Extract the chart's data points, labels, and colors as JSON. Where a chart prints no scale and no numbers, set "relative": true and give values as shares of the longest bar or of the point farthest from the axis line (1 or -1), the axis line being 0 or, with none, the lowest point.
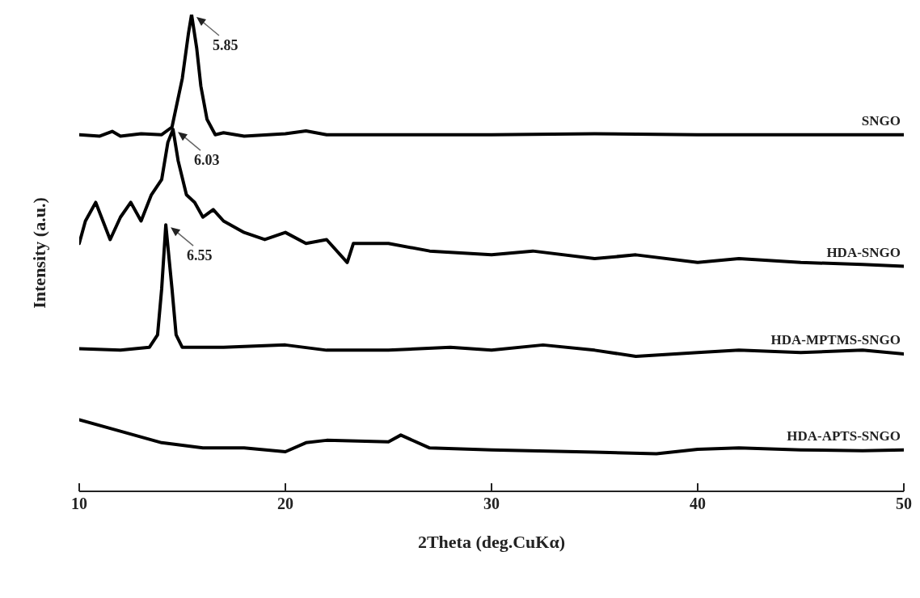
{
  "chart_data": {
    "type": "line",
    "xlabel": "2Theta (deg.CuKα)",
    "ylabel": "Intensity (a.u.)",
    "relative": true,
    "xlim": [
      10,
      50
    ],
    "xticks": [
      10,
      20,
      30,
      40,
      50
    ],
    "marker": "none",
    "line_style": "solid",
    "series": [
      {
        "name": "SNGO",
        "color": "#000000",
        "x": [
          10,
          11,
          11.6,
          12,
          13,
          14,
          14.5,
          15.0,
          15.3,
          15.45,
          15.7,
          15.9,
          16.2,
          16.6,
          17,
          18,
          20,
          21,
          22,
          24,
          30,
          35,
          40,
          45,
          50
        ],
        "values": [
          0.748,
          0.745,
          0.755,
          0.745,
          0.75,
          0.748,
          0.764,
          0.866,
          0.961,
          1.0,
          0.929,
          0.85,
          0.78,
          0.748,
          0.752,
          0.745,
          0.75,
          0.756,
          0.748,
          0.748,
          0.748,
          0.75,
          0.748,
          0.748,
          0.748
        ]
      },
      {
        "name": "HDA-SNGO",
        "color": "#000000",
        "x": [
          10,
          10.3,
          10.8,
          11.5,
          12,
          12.5,
          13,
          13.5,
          14,
          14.3,
          14.55,
          14.8,
          15.2,
          15.6,
          16,
          16.5,
          17,
          18,
          19,
          20,
          21,
          22,
          23,
          23.3,
          25,
          27,
          30,
          32,
          35,
          37,
          40,
          42,
          45,
          48,
          50
        ],
        "values": [
          0.52,
          0.567,
          0.606,
          0.528,
          0.575,
          0.606,
          0.567,
          0.622,
          0.654,
          0.732,
          0.759,
          0.693,
          0.622,
          0.606,
          0.575,
          0.591,
          0.567,
          0.543,
          0.528,
          0.543,
          0.52,
          0.528,
          0.48,
          0.52,
          0.52,
          0.504,
          0.496,
          0.504,
          0.488,
          0.496,
          0.48,
          0.488,
          0.48,
          0.476,
          0.472
        ]
      },
      {
        "name": "HDA-MPTMS-SNGO",
        "color": "#000000",
        "x": [
          10,
          12,
          13.4,
          13.8,
          14.0,
          14.2,
          14.5,
          14.7,
          15,
          17,
          20,
          22,
          25,
          28,
          30,
          32.5,
          35,
          37,
          40,
          42,
          45,
          48,
          50
        ],
        "values": [
          0.299,
          0.296,
          0.302,
          0.328,
          0.425,
          0.559,
          0.425,
          0.328,
          0.302,
          0.302,
          0.307,
          0.296,
          0.296,
          0.302,
          0.296,
          0.307,
          0.296,
          0.283,
          0.291,
          0.296,
          0.291,
          0.296,
          0.288
        ]
      },
      {
        "name": "HDA-APTS-SNGO",
        "color": "#000000",
        "x": [
          10,
          12,
          14,
          16,
          18,
          20,
          21,
          22,
          25,
          25.6,
          27,
          30,
          35,
          38,
          40,
          42,
          45,
          48,
          50
        ],
        "values": [
          0.15,
          0.126,
          0.102,
          0.091,
          0.091,
          0.083,
          0.102,
          0.107,
          0.104,
          0.118,
          0.091,
          0.087,
          0.082,
          0.079,
          0.088,
          0.091,
          0.087,
          0.085,
          0.087
        ]
      }
    ],
    "annotations": [
      {
        "text": "5.85",
        "x": 15.45,
        "y": 1.0
      },
      {
        "text": "6.03",
        "x": 14.55,
        "y": 0.759
      },
      {
        "text": "6.55",
        "x": 14.2,
        "y": 0.559
      }
    ]
  }
}
